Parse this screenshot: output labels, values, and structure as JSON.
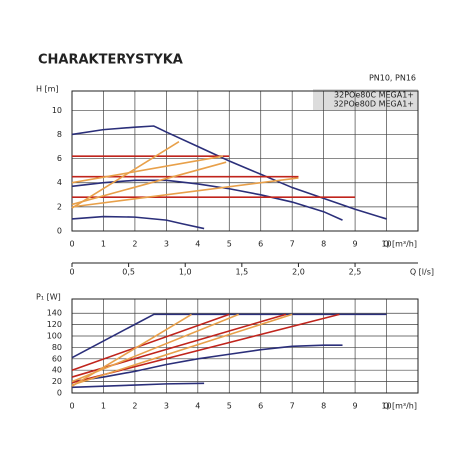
{
  "title": "CHARAKTERYSTYKA",
  "pressure": "PN10, PN16",
  "legend": [
    "32POe80C MEGA1+",
    "32POe80D MEGA1+"
  ],
  "chart_data": [
    {
      "type": "line",
      "ylabel": "H [m]",
      "xlabel": "Q [m³/h]",
      "x2label": "Q [l/s]",
      "xlim": [
        0,
        11
      ],
      "xticks": [
        0,
        1,
        2,
        3,
        4,
        5,
        6,
        7,
        8,
        9,
        10
      ],
      "ylim": [
        0,
        11.6
      ],
      "yticks": [
        0,
        2,
        4,
        6,
        8,
        10
      ],
      "x2lim": [
        0,
        3.056
      ],
      "x2ticks": [
        0,
        {
          "value": 0.5,
          "label": "0,5"
        },
        {
          "value": 1.0,
          "label": "1,0"
        },
        {
          "value": 1.5,
          "label": "1,5"
        },
        {
          "value": 2.0,
          "label": "2,0"
        },
        {
          "value": 2.5,
          "label": "2,5"
        }
      ],
      "grid": true,
      "series": [
        {
          "color": "#2b2f7a",
          "x": [
            0,
            1,
            2,
            2.6,
            3,
            4,
            5,
            6,
            7,
            8,
            9,
            10
          ],
          "values": [
            8,
            8.4,
            8.6,
            8.7,
            8.2,
            7.0,
            5.8,
            4.7,
            3.6,
            2.7,
            1.8,
            1.0
          ]
        },
        {
          "color": "#2b2f7a",
          "x": [
            0,
            1,
            2,
            3,
            4,
            5,
            6,
            7,
            8,
            8.6
          ],
          "values": [
            3.7,
            4.0,
            4.2,
            4.2,
            3.9,
            3.5,
            3.0,
            2.4,
            1.6,
            0.9
          ]
        },
        {
          "color": "#2b2f7a",
          "x": [
            0,
            1,
            2,
            3,
            3.5,
            4.2
          ],
          "values": [
            1.0,
            1.2,
            1.15,
            0.9,
            0.6,
            0.2
          ]
        },
        {
          "color": "#c0241c",
          "x": [
            0,
            5
          ],
          "values": [
            6.2,
            6.2
          ]
        },
        {
          "color": "#c0241c",
          "x": [
            0,
            7.2
          ],
          "values": [
            4.5,
            4.5
          ]
        },
        {
          "color": "#c0241c",
          "x": [
            0,
            9
          ],
          "values": [
            2.8,
            2.8
          ]
        },
        {
          "color": "#e8a04a",
          "x": [
            0,
            3.4
          ],
          "values": [
            1.9,
            7.4
          ]
        },
        {
          "color": "#e8a04a",
          "x": [
            0,
            4.9
          ],
          "values": [
            2.2,
            5.7
          ]
        },
        {
          "color": "#e8a04a",
          "x": [
            0,
            7.2
          ],
          "values": [
            2.0,
            4.4
          ]
        },
        {
          "color": "#e8a04a",
          "x": [
            0,
            4.8
          ],
          "values": [
            4.0,
            6.2
          ]
        }
      ]
    },
    {
      "type": "line",
      "ylabel": "P₁ [W]",
      "xlabel": "Q [m³/h]",
      "xlim": [
        0,
        11
      ],
      "xticks": [
        0,
        1,
        2,
        3,
        4,
        5,
        6,
        7,
        8,
        9,
        10
      ],
      "ylim": [
        0,
        165
      ],
      "yticks": [
        0,
        20,
        40,
        60,
        80,
        100,
        120,
        140
      ],
      "grid": true,
      "series": [
        {
          "color": "#2b2f7a",
          "x": [
            0,
            2.6,
            10
          ],
          "values": [
            62,
            138,
            138
          ]
        },
        {
          "color": "#2b2f7a",
          "x": [
            0,
            1,
            2,
            3,
            4,
            5,
            6,
            7,
            8,
            8.6
          ],
          "values": [
            20,
            28,
            38,
            50,
            60,
            68,
            76,
            82,
            84,
            84
          ]
        },
        {
          "color": "#2b2f7a",
          "x": [
            0,
            1,
            2,
            3,
            4.2
          ],
          "values": [
            10,
            12,
            14,
            16,
            17
          ]
        },
        {
          "color": "#c0241c",
          "x": [
            0,
            5
          ],
          "values": [
            40,
            138
          ]
        },
        {
          "color": "#c0241c",
          "x": [
            0,
            6.8
          ],
          "values": [
            28,
            138
          ]
        },
        {
          "color": "#c0241c",
          "x": [
            0,
            8.5
          ],
          "values": [
            18,
            138
          ]
        },
        {
          "color": "#e8a04a",
          "x": [
            0,
            3.8
          ],
          "values": [
            12,
            138
          ]
        },
        {
          "color": "#e8a04a",
          "x": [
            0,
            5.3
          ],
          "values": [
            20,
            138
          ]
        },
        {
          "color": "#e8a04a",
          "x": [
            0,
            7
          ],
          "values": [
            14,
            138
          ]
        }
      ]
    }
  ]
}
